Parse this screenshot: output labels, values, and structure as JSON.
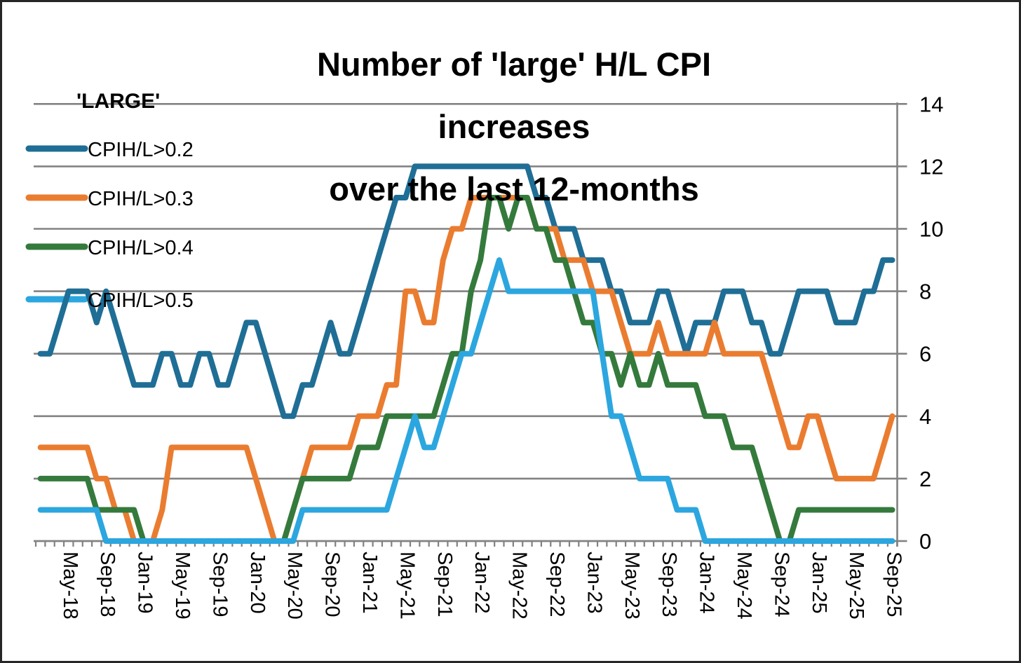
{
  "title": {
    "line1": "Number of 'large' H/L CPI",
    "line2": "increases",
    "line3": "over the last 12-months"
  },
  "legend": {
    "header": "'LARGE'",
    "position": "top-left"
  },
  "colors": {
    "series_02": "#1F6E96",
    "series_03": "#EA7C30",
    "series_04": "#347A3C",
    "series_05": "#2CA6DF",
    "gridline": "#828282",
    "axis": "#828282",
    "text": "#000000",
    "background": "#FFFFFF",
    "frame_border": "#262626"
  },
  "y_axis": {
    "side": "right",
    "tick_labels": [
      "0",
      "2",
      "4",
      "6",
      "8",
      "10",
      "12",
      "14"
    ],
    "min": 0,
    "max": 14,
    "step": 2
  },
  "x_axis": {
    "label_every_n_months": 4,
    "first_label": "May-18",
    "visible_labels": [
      "May-18",
      "Sep-18",
      "Jan-19",
      "May-19",
      "Sep-19",
      "Jan-20",
      "May-20",
      "Sep-20",
      "Jan-21",
      "May-21",
      "Sep-21",
      "Jan-22",
      "May-22",
      "Sep-22",
      "Jan-23",
      "May-23",
      "Sep-23",
      "Jan-24",
      "May-24",
      "Sep-24",
      "Jan-25",
      "May-25",
      "Sep-25"
    ]
  },
  "chart_data": {
    "type": "line",
    "title": "Number of 'large' H/L CPI increases over the last 12-months",
    "xlabel": "",
    "ylabel": "",
    "ylim": [
      0,
      14
    ],
    "grid": true,
    "legend_position": "top-left",
    "x": [
      "Feb-18",
      "Mar-18",
      "Apr-18",
      "May-18",
      "Jun-18",
      "Jul-18",
      "Aug-18",
      "Sep-18",
      "Oct-18",
      "Nov-18",
      "Dec-18",
      "Jan-19",
      "Feb-19",
      "Mar-19",
      "Apr-19",
      "May-19",
      "Jun-19",
      "Jul-19",
      "Aug-19",
      "Sep-19",
      "Oct-19",
      "Nov-19",
      "Dec-19",
      "Jan-20",
      "Feb-20",
      "Mar-20",
      "Apr-20",
      "May-20",
      "Jun-20",
      "Jul-20",
      "Aug-20",
      "Sep-20",
      "Oct-20",
      "Nov-20",
      "Dec-20",
      "Jan-21",
      "Feb-21",
      "Mar-21",
      "Apr-21",
      "May-21",
      "Jun-21",
      "Jul-21",
      "Aug-21",
      "Sep-21",
      "Oct-21",
      "Nov-21",
      "Dec-21",
      "Jan-22",
      "Feb-22",
      "Mar-22",
      "Apr-22",
      "May-22",
      "Jun-22",
      "Jul-22",
      "Aug-22",
      "Sep-22",
      "Oct-22",
      "Nov-22",
      "Dec-22",
      "Jan-23",
      "Feb-23",
      "Mar-23",
      "Apr-23",
      "May-23",
      "Jun-23",
      "Jul-23",
      "Aug-23",
      "Sep-23",
      "Oct-23",
      "Nov-23",
      "Dec-23",
      "Jan-24",
      "Feb-24",
      "Mar-24",
      "Apr-24",
      "May-24",
      "Jun-24",
      "Jul-24",
      "Aug-24",
      "Sep-24",
      "Oct-24",
      "Nov-24",
      "Dec-24",
      "Jan-25",
      "Feb-25",
      "Mar-25",
      "Apr-25",
      "May-25",
      "Jun-25",
      "Jul-25",
      "Aug-25",
      "Sep-25"
    ],
    "series": [
      {
        "name": "CPIH/L>0.2",
        "color": "#1F6E96",
        "values": [
          6,
          6,
          7,
          8,
          8,
          8,
          7,
          8,
          7,
          6,
          5,
          5,
          5,
          6,
          6,
          5,
          5,
          6,
          6,
          5,
          5,
          6,
          7,
          7,
          6,
          5,
          4,
          4,
          5,
          5,
          6,
          7,
          6,
          6,
          7,
          8,
          9,
          10,
          11,
          11,
          12,
          12,
          12,
          12,
          12,
          12,
          12,
          12,
          12,
          12,
          12,
          12,
          12,
          11,
          11,
          10,
          10,
          10,
          9,
          9,
          9,
          8,
          8,
          7,
          7,
          7,
          8,
          8,
          7,
          6,
          7,
          7,
          7,
          8,
          8,
          8,
          7,
          7,
          6,
          6,
          7,
          8,
          8,
          8,
          8,
          7,
          7,
          7,
          8,
          8,
          9,
          9
        ]
      },
      {
        "name": "CPIH/L>0.3",
        "color": "#EA7C30",
        "values": [
          3,
          3,
          3,
          3,
          3,
          3,
          2,
          2,
          1,
          1,
          0,
          0,
          0,
          1,
          3,
          3,
          3,
          3,
          3,
          3,
          3,
          3,
          3,
          2,
          1,
          0,
          0,
          1,
          2,
          3,
          3,
          3,
          3,
          3,
          4,
          4,
          4,
          5,
          5,
          8,
          8,
          7,
          7,
          9,
          10,
          10,
          11,
          11,
          11,
          11,
          11,
          11,
          11,
          10,
          10,
          10,
          9,
          9,
          9,
          8,
          8,
          8,
          7,
          6,
          6,
          6,
          7,
          6,
          6,
          6,
          6,
          6,
          7,
          6,
          6,
          6,
          6,
          6,
          5,
          4,
          3,
          3,
          4,
          4,
          3,
          2,
          2,
          2,
          2,
          2,
          3,
          4
        ]
      },
      {
        "name": "CPIH/L>0.4",
        "color": "#347A3C",
        "values": [
          2,
          2,
          2,
          2,
          2,
          2,
          1,
          1,
          1,
          1,
          1,
          0,
          0,
          0,
          0,
          0,
          0,
          0,
          0,
          0,
          0,
          0,
          0,
          0,
          0,
          0,
          0,
          1,
          2,
          2,
          2,
          2,
          2,
          2,
          3,
          3,
          3,
          4,
          4,
          4,
          4,
          4,
          4,
          5,
          6,
          6,
          8,
          9,
          11,
          11,
          10,
          11,
          11,
          10,
          10,
          9,
          9,
          8,
          7,
          7,
          6,
          6,
          5,
          6,
          5,
          5,
          6,
          5,
          5,
          5,
          5,
          4,
          4,
          4,
          3,
          3,
          3,
          2,
          1,
          0,
          0,
          1,
          1,
          1,
          1,
          1,
          1,
          1,
          1,
          1,
          1,
          1
        ]
      },
      {
        "name": "CPIH/L>0.5",
        "color": "#2CA6DF",
        "values": [
          1,
          1,
          1,
          1,
          1,
          1,
          1,
          0,
          0,
          0,
          0,
          0,
          0,
          0,
          0,
          0,
          0,
          0,
          0,
          0,
          0,
          0,
          0,
          0,
          0,
          0,
          0,
          0,
          1,
          1,
          1,
          1,
          1,
          1,
          1,
          1,
          1,
          1,
          2,
          3,
          4,
          3,
          3,
          4,
          5,
          6,
          6,
          7,
          8,
          9,
          8,
          8,
          8,
          8,
          8,
          8,
          8,
          8,
          8,
          8,
          6,
          4,
          4,
          3,
          2,
          2,
          2,
          2,
          1,
          1,
          1,
          0,
          0,
          0,
          0,
          0,
          0,
          0,
          0,
          0,
          0,
          0,
          0,
          0,
          0,
          0,
          0,
          0,
          0,
          0,
          0,
          0
        ]
      }
    ]
  }
}
